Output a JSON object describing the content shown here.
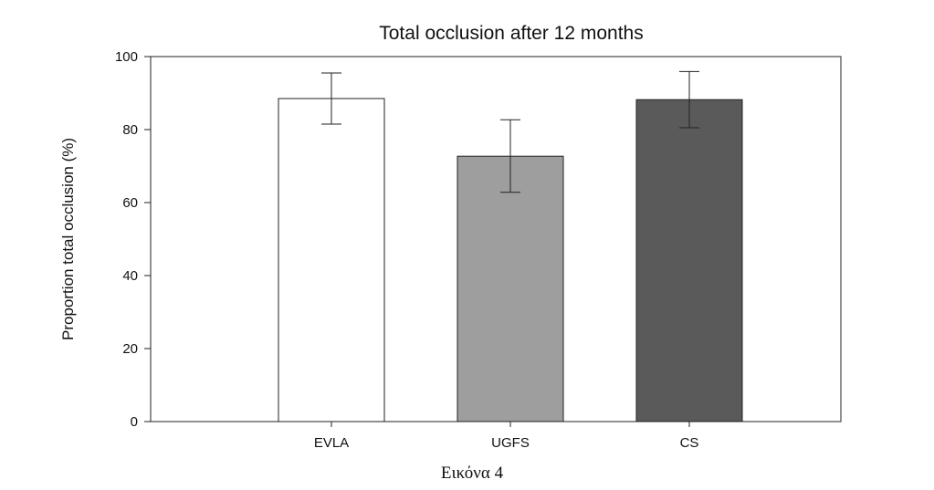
{
  "figure": {
    "caption": "Εικόνα 4"
  },
  "chart_data": {
    "type": "bar",
    "title": "Total occlusion after 12 months",
    "xlabel": "",
    "ylabel": "Proportion total occlusion (%)",
    "categories": [
      "EVLA",
      "UGFS",
      "CS"
    ],
    "values": [
      88.5,
      72.7,
      88.2
    ],
    "error_bars": [
      {
        "low": 81.5,
        "high": 95.5
      },
      {
        "low": 62.8,
        "high": 82.7
      },
      {
        "low": 80.5,
        "high": 95.9
      }
    ],
    "bar_colors": [
      "#ffffff",
      "#9e9e9e",
      "#5a5a5a"
    ],
    "ylim": [
      0,
      100
    ],
    "yticks": [
      0,
      20,
      40,
      60,
      80,
      100
    ],
    "grid": false,
    "legend": "none"
  }
}
